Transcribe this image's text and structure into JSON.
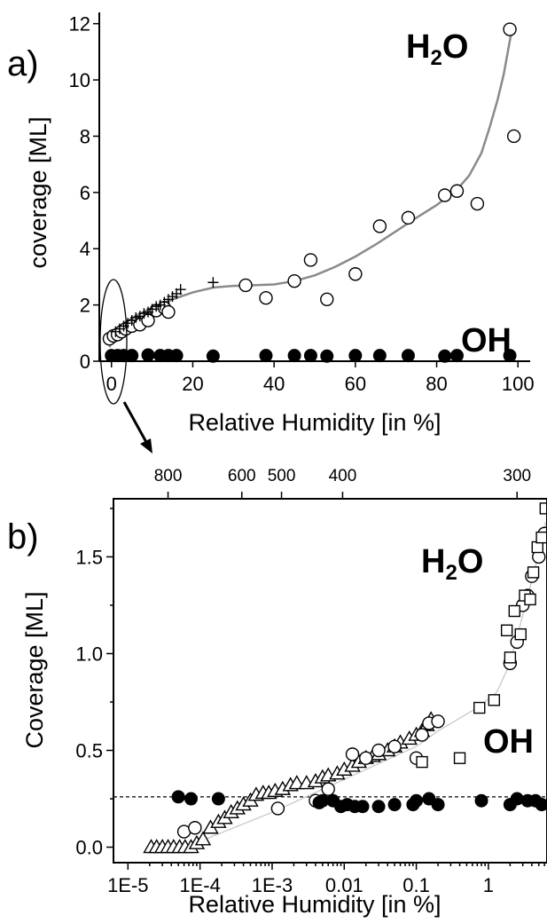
{
  "chart_data": [
    {
      "panel": "a)",
      "type": "scatter",
      "xlabel": "Relative Humidity [in %]",
      "ylabel": "coverage [ML]",
      "xlim": [
        -3,
        103
      ],
      "ylim": [
        0,
        12.4
      ],
      "xticks": [
        0,
        20,
        40,
        60,
        80,
        100
      ],
      "xtick_labels": [
        "0",
        "20",
        "40",
        "60",
        "80",
        "100"
      ],
      "yticks": [
        0,
        2,
        4,
        6,
        8,
        10,
        12
      ],
      "ytick_labels": [
        "0",
        "2",
        "4",
        "6",
        "8",
        "10",
        "12"
      ],
      "annotations": [
        {
          "text": "H",
          "sub": "2",
          "tail": "O",
          "x": 80,
          "y": 11.3
        },
        {
          "text": "OH",
          "x": 83,
          "y": 0.55
        }
      ],
      "series": [
        {
          "marker": "open-circle",
          "x": [
            -0.5,
            0.5,
            1.5,
            2.5,
            3.5,
            5,
            7,
            9,
            11,
            13,
            14,
            33,
            38,
            45,
            49,
            53,
            60,
            66,
            73,
            82,
            85,
            90,
            98,
            99
          ],
          "y": [
            0.8,
            0.9,
            0.95,
            1.05,
            1.15,
            1.25,
            1.3,
            1.45,
            1.8,
            1.9,
            1.75,
            2.7,
            2.25,
            2.85,
            3.6,
            2.2,
            3.1,
            4.8,
            5.1,
            5.9,
            6.05,
            5.6,
            11.8,
            8.0
          ]
        },
        {
          "marker": "plus",
          "x": [
            1,
            2,
            3,
            4,
            5,
            6,
            7,
            8,
            9,
            10,
            11,
            12,
            13,
            14,
            15,
            16,
            17,
            25
          ],
          "y": [
            1.05,
            1.15,
            1.25,
            1.35,
            1.45,
            1.55,
            1.6,
            1.7,
            1.75,
            1.85,
            1.95,
            2.0,
            2.1,
            2.2,
            2.3,
            2.4,
            2.55,
            2.8
          ]
        },
        {
          "marker": "filled-circle",
          "x": [
            0,
            1.5,
            3,
            5,
            9,
            12,
            14,
            16,
            25,
            38,
            45,
            49,
            53,
            60,
            66,
            73,
            82,
            85,
            98
          ],
          "y": [
            0.2,
            0.2,
            0.2,
            0.2,
            0.22,
            0.2,
            0.2,
            0.2,
            0.18,
            0.2,
            0.2,
            0.2,
            0.18,
            0.2,
            0.2,
            0.2,
            0.18,
            0.2,
            0.2
          ]
        },
        {
          "marker": "fit-line",
          "x": [
            -0.5,
            1,
            3,
            6,
            10,
            15,
            20,
            25,
            30,
            35,
            40,
            45,
            50,
            55,
            60,
            65,
            70,
            75,
            80,
            85,
            88,
            91,
            93,
            95,
            96.5,
            97.5,
            98.5
          ],
          "y": [
            0.5,
            1.05,
            1.35,
            1.62,
            1.9,
            2.2,
            2.45,
            2.62,
            2.68,
            2.7,
            2.73,
            2.85,
            3.05,
            3.35,
            3.72,
            4.15,
            4.62,
            5.1,
            5.55,
            6.1,
            6.6,
            7.4,
            8.3,
            9.3,
            10.2,
            11.0,
            11.8
          ]
        }
      ]
    },
    {
      "panel": "b)",
      "type": "scatter",
      "xlabel": "Relative Humidity [in %]",
      "ylabel": "Coverage [ML]",
      "xscale": "log",
      "xlim": [
        6.3e-06,
        6.5
      ],
      "ylim": [
        -0.08,
        1.8
      ],
      "xticks": [
        1e-05,
        0.0001,
        0.001,
        0.01,
        0.1,
        1
      ],
      "xtick_labels": [
        "1E-5",
        "1E-4",
        "1E-3",
        "0.01",
        "0.1",
        "1"
      ],
      "yticks": [
        0.0,
        0.5,
        1.0,
        1.5
      ],
      "ytick_labels": [
        "0.0",
        "0.5",
        "1.0",
        "1.5"
      ],
      "top_axis_ticks": [
        {
          "label": "800",
          "x": 3.6e-05
        },
        {
          "label": "600",
          "x": 0.00038
        },
        {
          "label": "500",
          "x": 0.00135
        },
        {
          "label": "400",
          "x": 0.0095
        },
        {
          "label": "300",
          "x": 2.5
        }
      ],
      "reference_line_y": 0.26,
      "annotations": [
        {
          "text": "H",
          "sub": "2",
          "tail": "O",
          "x": 1.7,
          "y": 1.55
        },
        {
          "text": "OH",
          "x": 1.6,
          "y": 0.33
        }
      ],
      "series": [
        {
          "marker": "open-triangle",
          "x": [
            2.1e-05,
            2.5e-05,
            3e-05,
            3.6e-05,
            4.3e-05,
            5.2e-05,
            6.2e-05,
            7.5e-05,
            9e-05,
            0.00011,
            0.00014,
            0.00018,
            0.00022,
            0.00027,
            0.00033,
            0.0004,
            0.0005,
            0.0006,
            0.00075,
            0.0009,
            0.0011,
            0.0014,
            0.0018,
            0.0022,
            0.003,
            0.004,
            0.005,
            0.006,
            0.008,
            0.01,
            0.013,
            0.016,
            0.02,
            0.025,
            0.03,
            0.04,
            0.05,
            0.06,
            0.08,
            0.1,
            0.12,
            0.14,
            0.16
          ],
          "y": [
            0.0,
            0.0,
            0.0,
            0.0,
            0.0,
            0.0,
            0.0,
            0.0,
            0.02,
            0.04,
            0.1,
            0.13,
            0.15,
            0.18,
            0.2,
            0.22,
            0.24,
            0.27,
            0.28,
            0.28,
            0.29,
            0.3,
            0.32,
            0.33,
            0.33,
            0.34,
            0.36,
            0.37,
            0.38,
            0.4,
            0.42,
            0.44,
            0.46,
            0.47,
            0.48,
            0.5,
            0.52,
            0.54,
            0.56,
            0.58,
            0.6,
            0.63,
            0.66
          ]
        },
        {
          "marker": "open-circle",
          "x": [
            6e-05,
            8.5e-05,
            0.0012,
            0.004,
            0.006,
            0.013,
            0.02,
            0.03,
            0.05,
            0.1,
            0.12,
            0.15,
            0.2,
            2.0,
            2.5,
            3.0,
            3.5,
            4.0,
            5.0,
            6.0
          ],
          "y": [
            0.08,
            0.1,
            0.2,
            0.24,
            0.3,
            0.48,
            0.46,
            0.5,
            0.52,
            0.46,
            0.58,
            0.64,
            0.65,
            0.95,
            1.06,
            1.25,
            1.3,
            1.4,
            1.5,
            1.62
          ]
        },
        {
          "marker": "open-square",
          "x": [
            0.12,
            0.4,
            0.75,
            1.2,
            1.8,
            2.0,
            2.3,
            2.8,
            3.2,
            3.8,
            4.2,
            4.8,
            5.5,
            6.2
          ],
          "y": [
            0.44,
            0.46,
            0.72,
            0.76,
            1.12,
            0.98,
            1.22,
            1.1,
            1.3,
            1.28,
            1.42,
            1.55,
            1.6,
            1.75
          ]
        },
        {
          "marker": "filled-circle",
          "x": [
            5e-05,
            7.5e-05,
            0.00018,
            0.0045,
            0.005,
            0.007,
            0.009,
            0.011,
            0.014,
            0.018,
            0.03,
            0.05,
            0.09,
            0.1,
            0.15,
            0.2,
            0.8,
            2.0,
            2.5,
            3.5,
            4.5,
            5.5
          ],
          "y": [
            0.26,
            0.25,
            0.25,
            0.23,
            0.24,
            0.24,
            0.21,
            0.22,
            0.21,
            0.21,
            0.21,
            0.22,
            0.22,
            0.24,
            0.25,
            0.22,
            0.24,
            0.22,
            0.25,
            0.24,
            0.24,
            0.22
          ]
        },
        {
          "marker": "guide-line",
          "x": [
            0.0001,
            0.001,
            0.01,
            0.1,
            0.2,
            0.7,
            1.3,
            2.0,
            3.0,
            4.5,
            6.2
          ],
          "y": [
            0.03,
            0.18,
            0.35,
            0.52,
            0.6,
            0.72,
            0.8,
            0.95,
            1.2,
            1.45,
            1.68
          ]
        }
      ]
    }
  ]
}
